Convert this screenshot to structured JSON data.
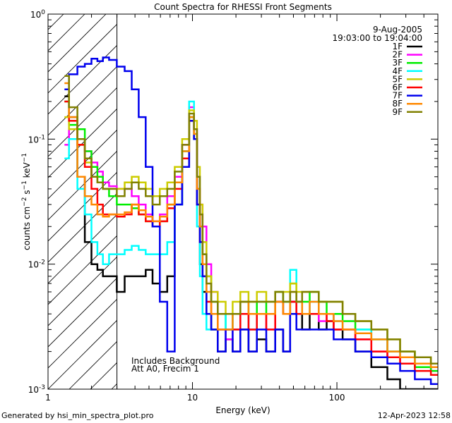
{
  "chart_data": {
    "type": "line",
    "title": "Count Spectra for RHESSI Front Segments",
    "xlabel": "Energy (keV)",
    "ylabel": "counts cm^-2 s^-1 keV^-1",
    "xscale": "log",
    "yscale": "log",
    "xlim": [
      1,
      500
    ],
    "ylim": [
      0.001,
      1.0
    ],
    "x_ticks": [
      {
        "value": 1,
        "label": "1"
      },
      {
        "value": 10,
        "label": "10"
      },
      {
        "value": 100,
        "label": "100"
      }
    ],
    "date": "9-Aug-2005",
    "time_range": "19:03:00 to 19:04:00",
    "annotations": [
      "Includes Background",
      "Att A0, Frecim 1"
    ],
    "hatch_region": [
      1,
      3
    ],
    "series": [
      {
        "name": "1F",
        "color": "#000000",
        "x": [
          1.3,
          1.5,
          1.7,
          1.9,
          2.1,
          2.3,
          2.5,
          2.8,
          3.2,
          3.6,
          4.0,
          4.5,
          5.0,
          5.6,
          6.3,
          7.1,
          8.0,
          9.0,
          10.0,
          10.5,
          11.0,
          11.5,
          12,
          13,
          14,
          16,
          18,
          20,
          23,
          26,
          30,
          35,
          40,
          45,
          50,
          55,
          60,
          70,
          80,
          90,
          100,
          120,
          150,
          200,
          250,
          300,
          400,
          500
        ],
        "values": [
          0.22,
          0.15,
          0.05,
          0.015,
          0.01,
          0.009,
          0.008,
          0.008,
          0.006,
          0.008,
          0.008,
          0.008,
          0.009,
          0.007,
          0.006,
          0.008,
          0.03,
          0.06,
          0.15,
          0.1,
          0.03,
          0.01,
          0.006,
          0.004,
          0.003,
          0.002,
          0.0025,
          0.002,
          0.003,
          0.002,
          0.0025,
          0.002,
          0.003,
          0.002,
          0.005,
          0.004,
          0.003,
          0.004,
          0.003,
          0.0035,
          0.003,
          0.0025,
          0.002,
          0.0015,
          0.0012,
          0.001,
          0.001,
          0.001
        ]
      },
      {
        "name": "2F",
        "color": "#ff00ff",
        "x": [
          1.3,
          1.5,
          1.7,
          1.9,
          2.1,
          2.3,
          2.5,
          2.8,
          3.2,
          3.6,
          4.0,
          4.5,
          5.0,
          5.6,
          6.3,
          7.1,
          8.0,
          9.0,
          10.0,
          10.5,
          11.0,
          11.5,
          12,
          13,
          14,
          16,
          18,
          20,
          23,
          26,
          30,
          35,
          40,
          45,
          50,
          55,
          60,
          70,
          80,
          90,
          100,
          120,
          150,
          200,
          250,
          300,
          400,
          500
        ],
        "values": [
          0.09,
          0.12,
          0.1,
          0.08,
          0.065,
          0.055,
          0.045,
          0.042,
          0.04,
          0.04,
          0.035,
          0.03,
          0.025,
          0.022,
          0.025,
          0.035,
          0.05,
          0.09,
          0.18,
          0.12,
          0.04,
          0.03,
          0.02,
          0.01,
          0.006,
          0.003,
          0.0025,
          0.003,
          0.004,
          0.003,
          0.004,
          0.003,
          0.005,
          0.004,
          0.005,
          0.004,
          0.004,
          0.004,
          0.0035,
          0.004,
          0.003,
          0.003,
          0.0025,
          0.002,
          0.0018,
          0.0016,
          0.0015,
          0.0014
        ]
      },
      {
        "name": "3F",
        "color": "#00ee00",
        "x": [
          1.3,
          1.5,
          1.7,
          1.9,
          2.1,
          2.3,
          2.5,
          2.8,
          3.2,
          3.6,
          4.0,
          4.5,
          5.0,
          5.6,
          6.3,
          7.1,
          8.0,
          9.0,
          10.0,
          10.5,
          11.0,
          11.5,
          12,
          13,
          14,
          16,
          18,
          20,
          23,
          26,
          30,
          35,
          40,
          45,
          50,
          55,
          60,
          70,
          80,
          90,
          100,
          120,
          150,
          200,
          250,
          300,
          400,
          500
        ],
        "values": [
          0.2,
          0.13,
          0.12,
          0.08,
          0.06,
          0.05,
          0.04,
          0.035,
          0.03,
          0.03,
          0.028,
          0.025,
          0.022,
          0.02,
          0.022,
          0.03,
          0.045,
          0.08,
          0.15,
          0.1,
          0.03,
          0.02,
          0.012,
          0.008,
          0.005,
          0.004,
          0.003,
          0.004,
          0.005,
          0.004,
          0.005,
          0.004,
          0.006,
          0.005,
          0.007,
          0.005,
          0.005,
          0.006,
          0.005,
          0.004,
          0.004,
          0.0035,
          0.003,
          0.0025,
          0.002,
          0.002,
          0.0015,
          0.0014
        ]
      },
      {
        "name": "4F",
        "color": "#00ffff",
        "x": [
          1.3,
          1.5,
          1.7,
          1.9,
          2.1,
          2.3,
          2.5,
          2.8,
          3.2,
          3.6,
          4.0,
          4.5,
          5.0,
          5.6,
          6.3,
          7.1,
          8.0,
          9.0,
          10.0,
          10.5,
          11.0,
          11.5,
          12,
          13,
          14,
          16,
          18,
          20,
          23,
          26,
          30,
          35,
          40,
          45,
          50,
          55,
          60,
          70,
          80,
          90,
          100,
          120,
          150,
          200,
          250,
          300,
          400,
          500
        ],
        "values": [
          0.07,
          0.1,
          0.04,
          0.025,
          0.015,
          0.012,
          0.01,
          0.012,
          0.012,
          0.013,
          0.014,
          0.013,
          0.012,
          0.012,
          0.012,
          0.015,
          0.03,
          0.08,
          0.2,
          0.1,
          0.02,
          0.008,
          0.004,
          0.003,
          0.003,
          0.003,
          0.004,
          0.003,
          0.004,
          0.003,
          0.004,
          0.004,
          0.005,
          0.004,
          0.009,
          0.005,
          0.004,
          0.005,
          0.004,
          0.004,
          0.0035,
          0.003,
          0.003,
          0.0025,
          0.002,
          0.0018,
          0.0016,
          0.0015
        ]
      },
      {
        "name": "5F",
        "color": "#cccc00",
        "x": [
          1.3,
          1.5,
          1.7,
          1.9,
          2.1,
          2.3,
          2.5,
          2.8,
          3.2,
          3.6,
          4.0,
          4.5,
          5.0,
          5.6,
          6.3,
          7.1,
          8.0,
          9.0,
          10.0,
          10.5,
          11.0,
          11.5,
          12,
          13,
          14,
          16,
          18,
          20,
          23,
          26,
          30,
          35,
          40,
          45,
          50,
          55,
          60,
          70,
          80,
          90,
          100,
          120,
          150,
          200,
          250,
          300,
          400,
          500
        ],
        "values": [
          0.15,
          0.12,
          0.09,
          0.065,
          0.05,
          0.045,
          0.04,
          0.04,
          0.04,
          0.045,
          0.05,
          0.045,
          0.04,
          0.035,
          0.04,
          0.045,
          0.06,
          0.1,
          0.17,
          0.14,
          0.06,
          0.03,
          0.015,
          0.008,
          0.006,
          0.005,
          0.004,
          0.005,
          0.006,
          0.005,
          0.006,
          0.005,
          0.006,
          0.006,
          0.007,
          0.006,
          0.006,
          0.006,
          0.005,
          0.005,
          0.005,
          0.004,
          0.0035,
          0.003,
          0.0025,
          0.002,
          0.0018,
          0.0016
        ]
      },
      {
        "name": "6F",
        "color": "#ff0000",
        "x": [
          1.3,
          1.5,
          1.7,
          1.9,
          2.1,
          2.3,
          2.5,
          2.8,
          3.2,
          3.6,
          4.0,
          4.5,
          5.0,
          5.6,
          6.3,
          7.1,
          8.0,
          9.0,
          10.0,
          10.5,
          11.0,
          11.5,
          12,
          13,
          14,
          16,
          18,
          20,
          23,
          26,
          30,
          35,
          40,
          45,
          50,
          55,
          60,
          70,
          80,
          90,
          100,
          120,
          150,
          200,
          250,
          300,
          400,
          500
        ],
        "values": [
          0.2,
          0.14,
          0.09,
          0.06,
          0.04,
          0.03,
          0.025,
          0.025,
          0.024,
          0.025,
          0.03,
          0.025,
          0.022,
          0.02,
          0.022,
          0.028,
          0.04,
          0.07,
          0.14,
          0.1,
          0.03,
          0.015,
          0.008,
          0.005,
          0.004,
          0.003,
          0.003,
          0.003,
          0.004,
          0.003,
          0.004,
          0.003,
          0.005,
          0.004,
          0.005,
          0.004,
          0.004,
          0.004,
          0.004,
          0.0035,
          0.003,
          0.003,
          0.0025,
          0.002,
          0.0018,
          0.0016,
          0.0014,
          0.0013
        ]
      },
      {
        "name": "7F",
        "color": "#0000ee",
        "x": [
          1.3,
          1.5,
          1.7,
          1.9,
          2.1,
          2.3,
          2.5,
          2.8,
          3.2,
          3.6,
          4.0,
          4.5,
          5.0,
          5.6,
          6.3,
          7.1,
          8.0,
          9.0,
          10.0,
          10.5,
          11.0,
          11.5,
          12,
          13,
          14,
          16,
          18,
          20,
          23,
          26,
          30,
          35,
          40,
          45,
          50,
          55,
          60,
          70,
          80,
          90,
          100,
          120,
          150,
          200,
          250,
          300,
          400,
          500
        ],
        "values": [
          0.25,
          0.33,
          0.38,
          0.4,
          0.44,
          0.42,
          0.45,
          0.43,
          0.38,
          0.35,
          0.25,
          0.15,
          0.06,
          0.02,
          0.005,
          0.002,
          0.03,
          0.06,
          0.14,
          0.1,
          0.03,
          0.015,
          0.008,
          0.004,
          0.003,
          0.002,
          0.003,
          0.002,
          0.003,
          0.002,
          0.003,
          0.002,
          0.003,
          0.002,
          0.004,
          0.003,
          0.003,
          0.003,
          0.003,
          0.003,
          0.0025,
          0.0025,
          0.002,
          0.0018,
          0.0016,
          0.0014,
          0.0012,
          0.0011
        ]
      },
      {
        "name": "8F",
        "color": "#ff8800",
        "x": [
          1.3,
          1.5,
          1.7,
          1.9,
          2.1,
          2.3,
          2.5,
          2.8,
          3.2,
          3.6,
          4.0,
          4.5,
          5.0,
          5.6,
          6.3,
          7.1,
          8.0,
          9.0,
          10.0,
          10.5,
          11.0,
          11.5,
          12,
          13,
          14,
          16,
          18,
          20,
          23,
          26,
          30,
          35,
          40,
          45,
          50,
          55,
          60,
          70,
          80,
          90,
          100,
          120,
          150,
          200,
          250,
          300,
          400,
          500
        ],
        "values": [
          0.28,
          0.15,
          0.05,
          0.035,
          0.03,
          0.025,
          0.024,
          0.025,
          0.025,
          0.026,
          0.03,
          0.027,
          0.024,
          0.022,
          0.024,
          0.03,
          0.045,
          0.08,
          0.15,
          0.11,
          0.04,
          0.02,
          0.01,
          0.006,
          0.004,
          0.003,
          0.003,
          0.004,
          0.005,
          0.004,
          0.004,
          0.004,
          0.005,
          0.004,
          0.006,
          0.005,
          0.004,
          0.005,
          0.004,
          0.004,
          0.0035,
          0.003,
          0.0028,
          0.0025,
          0.002,
          0.0018,
          0.0016,
          0.0015
        ]
      },
      {
        "name": "9F",
        "color": "#808000",
        "x": [
          1.3,
          1.5,
          1.7,
          1.9,
          2.1,
          2.3,
          2.5,
          2.8,
          3.2,
          3.6,
          4.0,
          4.5,
          5.0,
          5.6,
          6.3,
          7.1,
          8.0,
          9.0,
          10.0,
          10.5,
          11.0,
          11.5,
          12,
          13,
          14,
          16,
          18,
          20,
          23,
          26,
          30,
          35,
          40,
          45,
          50,
          55,
          60,
          70,
          80,
          90,
          100,
          120,
          150,
          200,
          250,
          300,
          400,
          500
        ],
        "values": [
          0.32,
          0.18,
          0.1,
          0.07,
          0.05,
          0.045,
          0.04,
          0.04,
          0.035,
          0.04,
          0.045,
          0.04,
          0.035,
          0.03,
          0.035,
          0.04,
          0.055,
          0.09,
          0.16,
          0.12,
          0.05,
          0.025,
          0.012,
          0.007,
          0.005,
          0.004,
          0.004,
          0.004,
          0.005,
          0.005,
          0.005,
          0.005,
          0.006,
          0.005,
          0.006,
          0.005,
          0.006,
          0.006,
          0.005,
          0.005,
          0.005,
          0.004,
          0.0035,
          0.003,
          0.0025,
          0.002,
          0.0018,
          0.0016
        ]
      }
    ]
  },
  "footer": {
    "generated_by": "Generated by hsi_min_spectra_plot.pro",
    "timestamp": "12-Apr-2023 12:58"
  }
}
